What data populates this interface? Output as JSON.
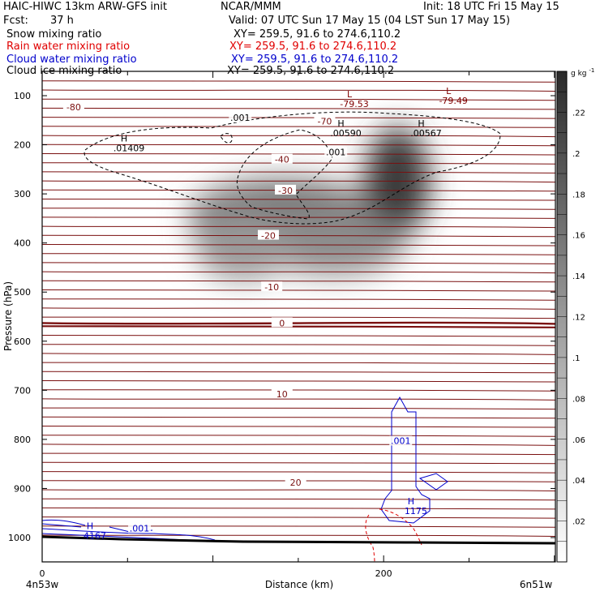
{
  "header": {
    "title": "HAIC-HIWC 13km ARW-GFS init",
    "org": "NCAR/MMM",
    "init": "Init: 18 UTC Fri 15 May 15",
    "fcst_label": "Fcst:",
    "fcst_value": "37 h",
    "valid": "Valid: 07 UTC Sun 17 May 15 (04 LST Sun 17 May 15)"
  },
  "fields": [
    {
      "name": "Snow mixing ratio",
      "xy": "XY= 259.5, 91.6 to 274.6,110.2",
      "color": "#000000"
    },
    {
      "name": "Rain water mixing ratio",
      "xy": "XY= 259.5, 91.6 to 274.6,110.2",
      "color": "#e00000"
    },
    {
      "name": "Cloud water mixing ratio",
      "xy": "XY= 259.5, 91.6 to 274.6,110.2",
      "color": "#0000cc"
    },
    {
      "name": "Cloud ice mixing ratio",
      "xy": "XY= 259.5, 91.6 to 274.6,110.2",
      "color": "#000000"
    }
  ],
  "chart_data": {
    "type": "cross-section contour",
    "xlabel": "Distance (km)",
    "ylabel": "Pressure (hPa)",
    "xlim": [
      0,
      300
    ],
    "x_ticks": [
      0,
      200
    ],
    "ylim": [
      1050,
      50
    ],
    "y_ticks": [
      100,
      200,
      300,
      400,
      500,
      600,
      700,
      800,
      900,
      1000
    ],
    "endpoints": {
      "left": "4n53w",
      "right": "6n51w"
    },
    "colorbar": {
      "unit": "g kg",
      "unit_exp": "-1",
      "ticks": [
        ".02",
        ".04",
        ".06",
        ".08",
        ".1",
        ".12",
        ".14",
        ".16",
        ".18",
        ".2",
        ".22"
      ],
      "ticks_value": [
        0.02,
        0.04,
        0.06,
        0.08,
        0.1,
        0.12,
        0.14,
        0.16,
        0.18,
        0.2,
        0.22
      ],
      "range": [
        0,
        0.24
      ]
    },
    "temperature_labels": [
      {
        "text": "-80",
        "x": 18,
        "p": 123
      },
      {
        "text": "-70",
        "x": 165,
        "p": 152
      },
      {
        "text": "-40",
        "x": 140,
        "p": 230
      },
      {
        "text": "-30",
        "x": 142,
        "p": 293
      },
      {
        "text": "-20",
        "x": 132,
        "p": 385
      },
      {
        "text": "-10",
        "x": 134,
        "p": 490
      },
      {
        "text": "0",
        "x": 140,
        "p": 563
      },
      {
        "text": "10",
        "x": 140,
        "p": 708
      },
      {
        "text": "20",
        "x": 148,
        "p": 888
      }
    ],
    "extrema": [
      {
        "letter": "L",
        "value": "-79.53",
        "x": 180,
        "p": 103,
        "color": "#800000"
      },
      {
        "letter": "L",
        "value": "-79.49",
        "x": 238,
        "p": 97,
        "color": "#800000"
      },
      {
        "letter": "H",
        "value": ".00590",
        "x": 175,
        "p": 163,
        "color": "#000000"
      },
      {
        "letter": "H",
        "value": ".00567",
        "x": 222,
        "p": 163,
        "color": "#000000"
      },
      {
        "letter": "H",
        "value": ".01409",
        "x": 48,
        "p": 193,
        "color": "#000000"
      },
      {
        "letter": "H",
        "value": "4167",
        "x": 28,
        "p": 983,
        "color": "#0000cc"
      },
      {
        "letter": "H",
        "value": "1175",
        "x": 216,
        "p": 932,
        "color": "#0000cc"
      }
    ],
    "contour_labels": [
      {
        "text": ".001",
        "x": 116,
        "p": 148,
        "color": "#000000"
      },
      {
        "text": ".001",
        "x": 172,
        "p": 218,
        "color": "#000000"
      },
      {
        "text": ".001",
        "x": 210,
        "p": 806,
        "color": "#0000cc"
      },
      {
        "text": ".001",
        "x": 57,
        "p": 984,
        "color": "#0000cc"
      }
    ]
  }
}
